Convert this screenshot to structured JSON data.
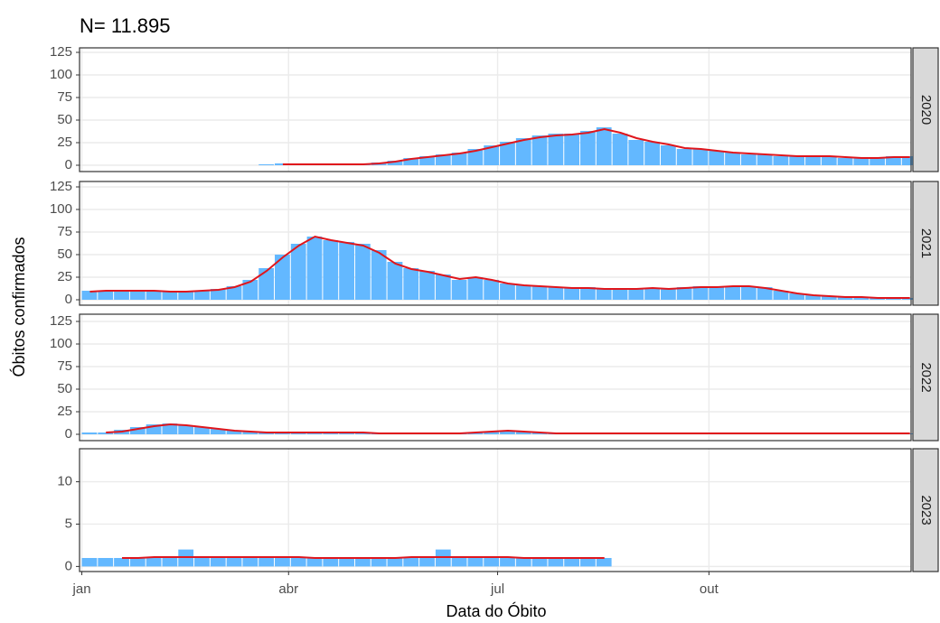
{
  "title": "N= 11.895",
  "y_label": "Óbitos confirmados",
  "x_label": "Data do Óbito",
  "chart_data": [
    {
      "type": "bar",
      "facet": "2020",
      "color": "#63b8ff",
      "line_color": "#e0161c",
      "x": [
        1,
        8,
        15,
        22,
        29,
        36,
        43,
        50,
        57,
        64,
        71,
        78,
        85,
        92,
        99,
        106,
        113,
        120,
        127,
        134,
        141,
        148,
        155,
        162,
        169,
        176,
        183,
        190,
        197,
        204,
        211,
        218,
        225,
        232,
        239,
        246,
        253,
        260,
        267,
        274,
        281,
        288,
        295,
        302,
        309,
        316,
        323,
        330,
        337,
        344,
        351,
        358
      ],
      "values": [
        null,
        null,
        null,
        null,
        null,
        null,
        null,
        null,
        null,
        null,
        null,
        1,
        2,
        2,
        2,
        2,
        2,
        2,
        3,
        5,
        8,
        10,
        12,
        14,
        18,
        22,
        26,
        30,
        33,
        35,
        35,
        38,
        42,
        35,
        28,
        26,
        22,
        18,
        18,
        16,
        14,
        12,
        12,
        10,
        10,
        10,
        10,
        8,
        8,
        9,
        10,
        10
      ],
      "line": [
        null,
        null,
        null,
        null,
        null,
        null,
        null,
        null,
        null,
        null,
        null,
        null,
        1,
        1,
        1,
        1,
        1,
        1,
        2,
        4,
        7,
        9,
        11,
        13,
        16,
        20,
        24,
        28,
        31,
        33,
        34,
        36,
        40,
        36,
        30,
        26,
        23,
        19,
        18,
        16,
        14,
        13,
        12,
        11,
        10,
        10,
        10,
        9,
        8,
        8,
        9,
        9
      ],
      "xlim": [
        0,
        362
      ],
      "xticks": [
        {
          "value": 1,
          "label": "jan"
        },
        {
          "value": 91,
          "label": "abr"
        },
        {
          "value": 182,
          "label": "jul"
        },
        {
          "value": 274,
          "label": "out"
        }
      ],
      "ylim": [
        -7,
        130
      ],
      "yticks": [
        0,
        25,
        50,
        75,
        100,
        125
      ]
    },
    {
      "type": "bar",
      "facet": "2021",
      "color": "#63b8ff",
      "line_color": "#e0161c",
      "x": [
        1,
        8,
        15,
        22,
        29,
        36,
        43,
        50,
        57,
        64,
        71,
        78,
        85,
        92,
        99,
        106,
        113,
        120,
        127,
        134,
        141,
        148,
        155,
        162,
        169,
        176,
        183,
        190,
        197,
        204,
        211,
        218,
        225,
        232,
        239,
        246,
        253,
        260,
        267,
        274,
        281,
        288,
        295,
        302,
        309,
        316,
        323,
        330,
        337,
        344,
        351,
        358
      ],
      "values": [
        10,
        10,
        10,
        10,
        10,
        10,
        9,
        10,
        12,
        15,
        22,
        35,
        50,
        62,
        70,
        66,
        64,
        62,
        55,
        42,
        35,
        32,
        28,
        22,
        25,
        22,
        18,
        16,
        15,
        14,
        13,
        14,
        12,
        12,
        12,
        13,
        12,
        14,
        15,
        15,
        15,
        15,
        14,
        10,
        7,
        5,
        4,
        3,
        3,
        2,
        2,
        2
      ],
      "line": [
        9,
        10,
        10,
        10,
        10,
        9,
        9,
        10,
        11,
        14,
        20,
        32,
        47,
        60,
        70,
        66,
        63,
        60,
        52,
        40,
        34,
        31,
        27,
        23,
        25,
        22,
        18,
        16,
        15,
        14,
        13,
        13,
        12,
        12,
        12,
        13,
        12,
        13,
        14,
        14,
        15,
        15,
        13,
        10,
        7,
        5,
        4,
        3,
        3,
        2,
        2,
        2
      ],
      "xlim": [
        0,
        362
      ],
      "xticks": [
        {
          "value": 1,
          "label": "jan"
        },
        {
          "value": 91,
          "label": "abr"
        },
        {
          "value": 182,
          "label": "jul"
        },
        {
          "value": 274,
          "label": "out"
        }
      ],
      "ylim": [
        -6,
        131
      ],
      "yticks": [
        0,
        25,
        50,
        75,
        100,
        125
      ]
    },
    {
      "type": "bar",
      "facet": "2022",
      "color": "#63b8ff",
      "line_color": "#e0161c",
      "x": [
        1,
        8,
        15,
        22,
        29,
        36,
        43,
        50,
        57,
        64,
        71,
        78,
        85,
        92,
        99,
        106,
        113,
        120,
        127,
        134,
        141,
        148,
        155,
        162,
        169,
        176,
        183,
        190,
        197,
        204,
        211,
        218,
        225,
        232,
        239,
        246,
        253,
        260,
        267,
        274,
        281,
        288,
        295,
        302,
        309,
        316,
        323,
        330,
        337,
        344,
        351,
        358
      ],
      "values": [
        2,
        2,
        5,
        8,
        11,
        12,
        10,
        8,
        6,
        4,
        3,
        2,
        2,
        2,
        2,
        2,
        2,
        2,
        2,
        1,
        1,
        1,
        1,
        1,
        2,
        3,
        4,
        3,
        2,
        1,
        1,
        1,
        1,
        1,
        1,
        1,
        1,
        1,
        1,
        1,
        1,
        1,
        1,
        1,
        1,
        1,
        1,
        1,
        1,
        1,
        1,
        1
      ],
      "line": [
        null,
        2,
        3,
        6,
        9,
        11,
        10,
        8,
        6,
        4,
        3,
        2,
        2,
        2,
        2,
        2,
        2,
        2,
        1,
        1,
        1,
        1,
        1,
        1,
        2,
        3,
        4,
        3,
        2,
        1,
        1,
        1,
        1,
        1,
        1,
        1,
        1,
        1,
        1,
        1,
        1,
        1,
        1,
        1,
        1,
        1,
        1,
        1,
        1,
        1,
        1,
        1
      ],
      "xlim": [
        0,
        362
      ],
      "xticks": [
        {
          "value": 1,
          "label": "jan"
        },
        {
          "value": 91,
          "label": "abr"
        },
        {
          "value": 182,
          "label": "jul"
        },
        {
          "value": 274,
          "label": "out"
        }
      ],
      "ylim": [
        -7,
        133
      ],
      "yticks": [
        0,
        25,
        50,
        75,
        100,
        125
      ]
    },
    {
      "type": "bar",
      "facet": "2023",
      "color": "#63b8ff",
      "line_color": "#e0161c",
      "x": [
        1,
        8,
        15,
        22,
        29,
        36,
        43,
        50,
        57,
        64,
        71,
        78,
        85,
        92,
        99,
        106,
        113,
        120,
        127,
        134,
        141,
        148,
        155,
        162,
        169,
        176,
        183,
        190,
        197,
        204,
        211,
        218,
        225,
        232,
        239,
        246,
        253,
        260,
        267,
        274,
        281,
        288,
        295,
        302,
        309,
        316,
        323,
        330,
        337,
        344,
        351,
        358
      ],
      "values": [
        1,
        1,
        1,
        1,
        1,
        1,
        2,
        1,
        1,
        1,
        1,
        1,
        1,
        1,
        1,
        1,
        1,
        1,
        1,
        1,
        1,
        1,
        2,
        1,
        1,
        1,
        1,
        1,
        1,
        1,
        1,
        1,
        1,
        null,
        null,
        null,
        null,
        null,
        null,
        null,
        null,
        null,
        null,
        null,
        null,
        null,
        null,
        null,
        null,
        null,
        null,
        null
      ],
      "line": [
        null,
        null,
        1,
        1,
        1.1,
        1.1,
        1.1,
        1.1,
        1.1,
        1.1,
        1.1,
        1.1,
        1.1,
        1.1,
        1,
        1,
        1,
        1,
        1,
        1,
        1.1,
        1.1,
        1.1,
        1.1,
        1.1,
        1.1,
        1.1,
        1,
        1,
        1,
        1,
        1,
        1,
        null,
        null,
        null,
        null,
        null,
        null,
        null,
        null,
        null,
        null,
        null,
        null,
        null,
        null,
        null,
        null,
        null,
        null,
        null
      ],
      "xlim": [
        0,
        362
      ],
      "xticks": [
        {
          "value": 1,
          "label": "jan"
        },
        {
          "value": 91,
          "label": "abr"
        },
        {
          "value": 182,
          "label": "jul"
        },
        {
          "value": 274,
          "label": "out"
        }
      ],
      "ylim": [
        -0.6,
        13.9
      ],
      "yticks": [
        0,
        5,
        10
      ]
    }
  ]
}
